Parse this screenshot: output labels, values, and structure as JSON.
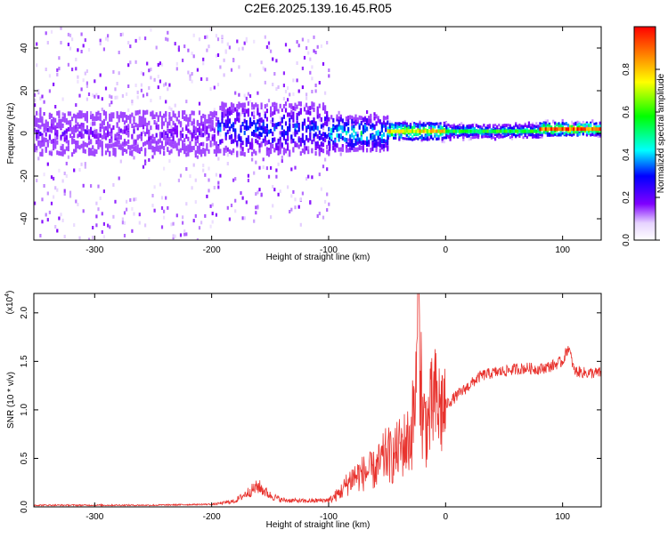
{
  "title": "C2E6.2025.139.16.45.R05",
  "colors": {
    "snr_line": "#e8332e",
    "spectro_background": "#ffffff",
    "spectro_violet": "#7f00ff",
    "spectro_cyan": "#00ffff",
    "spectro_red": "#ff0000"
  },
  "chart_data": [
    {
      "type": "heatmap",
      "title": "",
      "xlabel": "Height of straight line (km)",
      "ylabel": "Frequency (Hz)",
      "xlim": [
        -352,
        133
      ],
      "ylim": [
        -50,
        50
      ],
      "x_ticks": [
        -300,
        -200,
        -100,
        0,
        100
      ],
      "y_ticks": [
        -40,
        -20,
        0,
        20,
        40
      ],
      "colorbar": {
        "label": "Normalized spectral amplitude",
        "range": [
          0,
          1
        ],
        "ticks": [
          "0.0",
          "0.2",
          "0.4",
          "0.6",
          "0.8"
        ],
        "colormap": "rainbow (violet-blue-cyan-green-yellow-red)"
      },
      "bands": [
        {
          "x_start": -352,
          "x_end": -195,
          "center_hz": 0,
          "core_halfwidth_hz": 10,
          "peak_amplitude": 0.2,
          "scatter_halfwidth_hz": 50
        },
        {
          "x_start": -195,
          "x_end": -100,
          "center_hz": 2,
          "core_halfwidth_hz": 12,
          "peak_amplitude": 0.35,
          "scatter_halfwidth_hz": 45
        },
        {
          "x_start": -100,
          "x_end": -50,
          "center_hz": 0,
          "core_halfwidth_hz": 8,
          "peak_amplitude": 0.5,
          "scatter_halfwidth_hz": 10
        },
        {
          "x_start": -50,
          "x_end": 0,
          "center_hz": 1,
          "core_halfwidth_hz": 4,
          "peak_amplitude": 0.75,
          "scatter_halfwidth_hz": 5
        },
        {
          "x_start": 0,
          "x_end": 80,
          "center_hz": 1,
          "core_halfwidth_hz": 3,
          "peak_amplitude": 0.55,
          "scatter_halfwidth_hz": 4
        },
        {
          "x_start": 80,
          "x_end": 133,
          "center_hz": 2,
          "core_halfwidth_hz": 3,
          "peak_amplitude": 0.9,
          "scatter_halfwidth_hz": 4
        }
      ]
    },
    {
      "type": "line",
      "title": "",
      "xlabel": "Height of straight line (km)",
      "ylabel": "SNR (10 * v/v)",
      "y_multiplier_label": "(x10^4)",
      "xlim": [
        -352,
        133
      ],
      "ylim": [
        0,
        2.2
      ],
      "x_ticks": [
        -300,
        -200,
        -100,
        0,
        100
      ],
      "y_ticks": [
        "0.0",
        "0.5",
        "1.0",
        "1.5",
        "2.0"
      ],
      "series": [
        {
          "x": [
            -352,
            -300,
            -250,
            -200,
            -180,
            -170,
            -160,
            -150,
            -140,
            -120,
            -100,
            -90,
            -80,
            -70,
            -60,
            -50,
            -45,
            -40,
            -35,
            -30,
            -25,
            -23,
            -20,
            -15,
            -10,
            -5,
            0,
            10,
            20,
            30,
            40,
            50,
            60,
            70,
            80,
            90,
            100,
            105,
            110,
            120,
            133
          ],
          "values": [
            0.01,
            0.01,
            0.01,
            0.02,
            0.05,
            0.12,
            0.18,
            0.1,
            0.06,
            0.05,
            0.06,
            0.15,
            0.3,
            0.35,
            0.38,
            0.55,
            0.5,
            0.6,
            0.65,
            0.7,
            1.2,
            2.2,
            0.9,
            0.85,
            1.1,
            1.0,
            1.05,
            1.15,
            1.25,
            1.35,
            1.38,
            1.4,
            1.42,
            1.43,
            1.42,
            1.45,
            1.5,
            1.65,
            1.4,
            1.38,
            1.38
          ]
        }
      ]
    }
  ]
}
